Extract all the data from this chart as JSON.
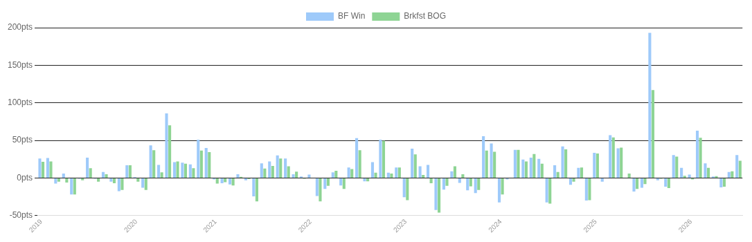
{
  "chart_data": {
    "type": "bar",
    "categories": [
      "2019",
      null,
      null,
      null,
      null,
      null,
      null,
      null,
      null,
      null,
      null,
      null,
      "2020",
      null,
      null,
      null,
      null,
      null,
      null,
      null,
      null,
      null,
      "2021",
      null,
      null,
      null,
      null,
      null,
      null,
      null,
      null,
      null,
      null,
      null,
      "2022",
      null,
      null,
      null,
      null,
      null,
      null,
      null,
      null,
      null,
      null,
      null,
      "2023",
      null,
      null,
      null,
      null,
      null,
      null,
      null,
      null,
      null,
      null,
      null,
      "2024",
      null,
      null,
      null,
      null,
      null,
      null,
      null,
      null,
      null,
      null,
      null,
      "2025",
      null,
      null,
      null,
      null,
      null,
      null,
      null,
      null,
      null,
      null,
      null,
      "2026",
      null,
      null,
      null,
      null,
      null,
      null
    ],
    "series": [
      {
        "name": "BF Win",
        "color": "#9ecafa",
        "values": [
          26,
          26.5,
          -7.5,
          6,
          -22,
          -1,
          27,
          -1,
          8,
          -5,
          -17.5,
          17,
          1,
          -13,
          43.5,
          17.5,
          86,
          21,
          20.5,
          18,
          51,
          40,
          -2,
          -7,
          -8.5,
          5,
          -3,
          -24.5,
          19.5,
          22,
          30,
          26,
          5,
          2,
          4.5,
          -24,
          -14.5,
          7.5,
          -10,
          14,
          53,
          -4.5,
          21,
          51,
          7,
          14,
          -25.5,
          39,
          15.5,
          17.5,
          -42.5,
          -15.5,
          9,
          -6.5,
          -16.5,
          -20,
          55.5,
          46,
          -32.5,
          -2,
          37.5,
          24.5,
          27,
          25.5,
          -32.5,
          17,
          42,
          -9,
          13.5,
          -30,
          33.5,
          -5,
          57,
          39.5,
          null,
          -18,
          -13,
          193,
          -3,
          -11.5,
          30.5,
          13.5,
          4.5,
          63,
          19.5,
          2,
          -12.5,
          8,
          30.5
        ]
      },
      {
        "name": "Brkfst BOG",
        "color": "#8ed494",
        "values": [
          21.5,
          22,
          -5,
          -6,
          -22,
          -3,
          13,
          -5,
          5,
          -7,
          -16,
          17,
          -5,
          -16,
          37,
          7.5,
          70,
          22,
          19,
          13,
          36.5,
          34.5,
          -7.5,
          -5.5,
          -10,
          1.5,
          -1.5,
          -31,
          12.5,
          16,
          26,
          15.5,
          8.5,
          -1,
          null,
          -31,
          -10.5,
          9.5,
          -14.5,
          12,
          37,
          -4.5,
          7,
          49.5,
          6,
          14,
          -29.5,
          31.5,
          4,
          -7,
          -46,
          -10.5,
          15.5,
          5,
          -11,
          -16,
          36.5,
          35,
          -22,
          null,
          37.5,
          22,
          32,
          19,
          -34,
          8,
          38,
          -5,
          14,
          -29.5,
          32.5,
          null,
          54,
          40.5,
          6,
          -14.5,
          -8,
          117,
          -1,
          -13.5,
          28.5,
          3,
          -2,
          53.5,
          13.5,
          2.5,
          -11.5,
          9,
          23
        ]
      }
    ],
    "ylim": [
      -50,
      200
    ],
    "yticks": [
      {
        "value": -50,
        "label": "-50pts"
      },
      {
        "value": 0,
        "label": "0pts"
      },
      {
        "value": 50,
        "label": "50pts"
      },
      {
        "value": 100,
        "label": "100pts"
      },
      {
        "value": 150,
        "label": "150pts"
      },
      {
        "value": 200,
        "label": "200pts"
      }
    ],
    "grid": "y",
    "legend": "top"
  }
}
